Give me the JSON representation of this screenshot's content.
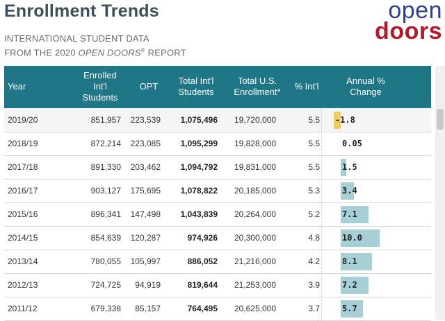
{
  "header": {
    "title": "Enrollment Trends",
    "subtitle_line1": "INTERNATIONAL STUDENT DATA",
    "subtitle_line2_prefix": "FROM THE 2020 ",
    "subtitle_line2_italic": "OPEN DOORS",
    "subtitle_line2_reg": "®",
    "subtitle_line2_suffix": " REPORT"
  },
  "logo": {
    "line1": "open",
    "line2": "doors",
    "colors": {
      "line1": "#2f3f8f",
      "line2": "#b3182b"
    }
  },
  "table": {
    "columns": {
      "year": "Year",
      "enrolled": "Enrolled Int'l Students",
      "opt": "OPT",
      "total_intl": "Total Int'l Students",
      "total_us": "Total U.S. Enrollment*",
      "pct_intl": "% Int'l",
      "annual_change": "Annual % Change"
    },
    "rows": [
      {
        "year": "2019/20",
        "enrolled": "851,957",
        "opt": "223,539",
        "total": "1,075,496",
        "us": "19,720,000",
        "pct": "5.5",
        "change": -1.8,
        "change_label": "-1.8"
      },
      {
        "year": "2018/19",
        "enrolled": "872,214",
        "opt": "223,085",
        "total": "1,095,299",
        "us": "19,828,000",
        "pct": "5.5",
        "change": 0.05,
        "change_label": "0.05"
      },
      {
        "year": "2017/18",
        "enrolled": "891,330",
        "opt": "203,462",
        "total": "1,094,792",
        "us": "19,831,000",
        "pct": "5.5",
        "change": 1.5,
        "change_label": "1.5"
      },
      {
        "year": "2016/17",
        "enrolled": "903,127",
        "opt": "175,695",
        "total": "1,078,822",
        "us": "20,185,000",
        "pct": "5.3",
        "change": 3.4,
        "change_label": "3.4"
      },
      {
        "year": "2015/16",
        "enrolled": "896,341",
        "opt": "147,498",
        "total": "1,043,839",
        "us": "20,264,000",
        "pct": "5.2",
        "change": 7.1,
        "change_label": "7.1"
      },
      {
        "year": "2014/15",
        "enrolled": "854,639",
        "opt": "120,287",
        "total": "974,926",
        "us": "20,300,000",
        "pct": "4.8",
        "change": 10.0,
        "change_label": "10.0"
      },
      {
        "year": "2013/14",
        "enrolled": "780,055",
        "opt": "105,997",
        "total": "886,052",
        "us": "21,216,000",
        "pct": "4.2",
        "change": 8.1,
        "change_label": "8.1"
      },
      {
        "year": "2012/13",
        "enrolled": "724,725",
        "opt": "94,919",
        "total": "819,644",
        "us": "21,253,000",
        "pct": "3.9",
        "change": 7.2,
        "change_label": "7.2"
      },
      {
        "year": "2011/12",
        "enrolled": "679,338",
        "opt": "85,157",
        "total": "764,495",
        "us": "20,625,000",
        "pct": "3.7",
        "change": 5.7,
        "change_label": "5.7"
      }
    ],
    "colors": {
      "header_bg": "#1f7686",
      "bar_positive": "#a7cfd6",
      "bar_negative": "#f0cc5e"
    }
  }
}
